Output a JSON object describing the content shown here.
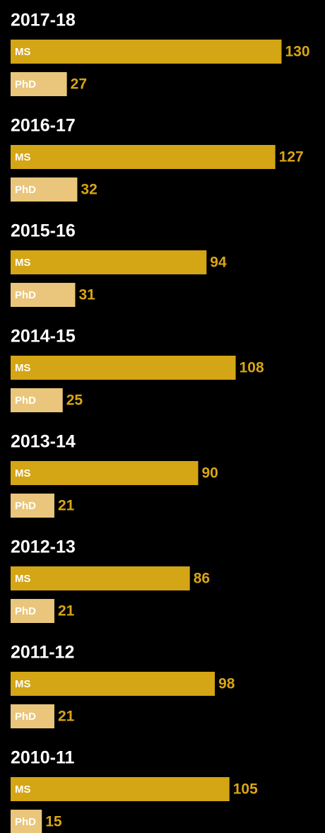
{
  "chart_data": {
    "type": "bar",
    "orientation": "horizontal",
    "categories": [
      "2017-18",
      "2016-17",
      "2015-16",
      "2014-15",
      "2013-14",
      "2012-13",
      "2011-12",
      "2010-11"
    ],
    "series": [
      {
        "name": "MS",
        "color": "#d4a514",
        "values": [
          130,
          127,
          94,
          108,
          90,
          86,
          98,
          105
        ]
      },
      {
        "name": "PhD",
        "color": "#e9c67b",
        "values": [
          27,
          32,
          31,
          25,
          21,
          21,
          21,
          15
        ]
      }
    ]
  }
}
